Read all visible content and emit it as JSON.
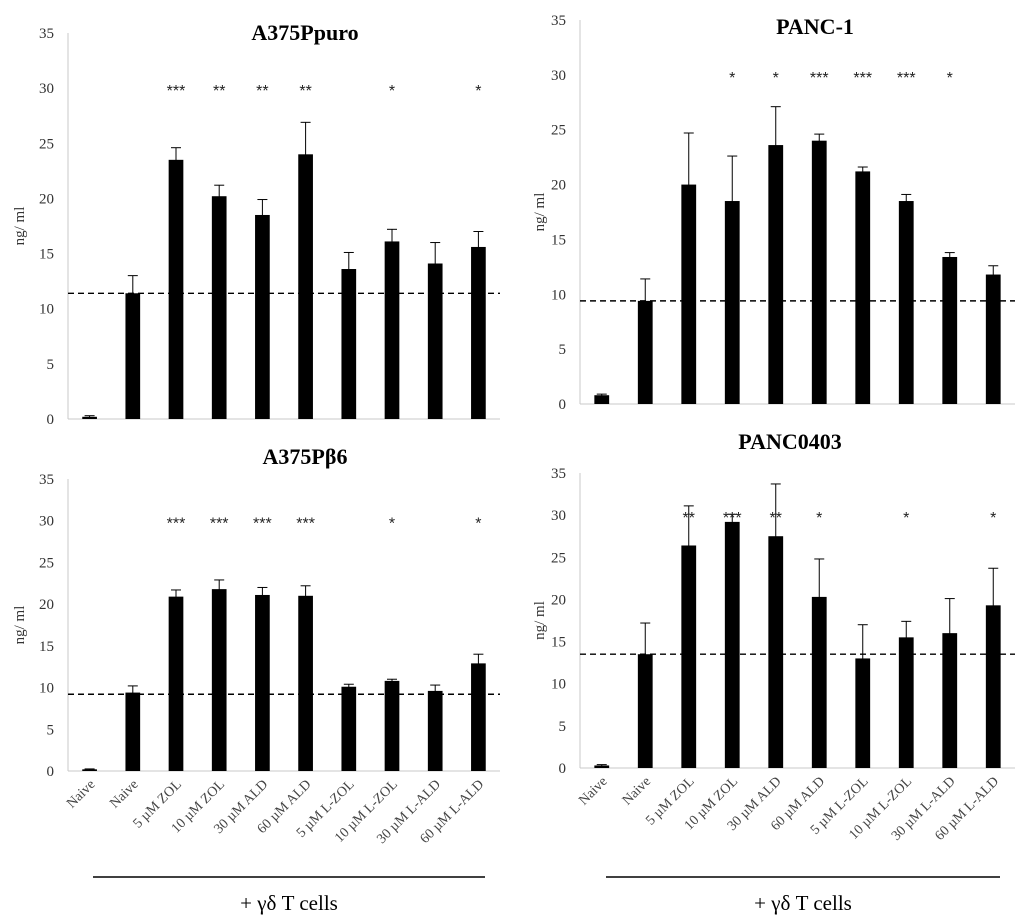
{
  "group_label": "+ γδ T cells",
  "watermark": "",
  "colors": {
    "bar": "#000000",
    "axis": "#c8c8c8",
    "baseline": "#000000",
    "text": "#333333"
  },
  "chart_data": [
    {
      "type": "bar",
      "title": "A375Ppuro",
      "ylabel": "ng/ ml",
      "ylim": [
        0,
        35
      ],
      "yticks": [
        0,
        5,
        10,
        15,
        20,
        25,
        30,
        35
      ],
      "categories": [
        "Naive",
        "Naive",
        "5 µM ZOL",
        "10 µM ZOL",
        "30 µM ALD",
        "60 µM ALD",
        "5 µM L-ZOL",
        "10 µM L-ZOL",
        "30 µM L-ALD",
        "60 µM L-ALD"
      ],
      "values": [
        0.2,
        11.4,
        23.5,
        20.2,
        18.5,
        24.0,
        13.6,
        16.1,
        14.1,
        15.6
      ],
      "errors": [
        0.1,
        1.6,
        1.1,
        1.0,
        1.4,
        2.9,
        1.5,
        1.1,
        1.9,
        1.4
      ],
      "significance": [
        "",
        "",
        "***",
        "**",
        "**",
        "**",
        "",
        "*",
        "",
        "*"
      ],
      "reference_line": 11.4,
      "show_category_labels": false
    },
    {
      "type": "bar",
      "title": "PANC-1",
      "ylabel": "ng/ ml",
      "ylim": [
        0,
        35
      ],
      "yticks": [
        0,
        5,
        10,
        15,
        20,
        25,
        30,
        35
      ],
      "categories": [
        "Naive",
        "Naive",
        "5 µM ZOL",
        "10 µM ZOL",
        "30 µM ALD",
        "60 µM ALD",
        "5 µM L-ZOL",
        "10 µM L-ZOL",
        "30 µM L-ALD",
        "60 µM L-ALD"
      ],
      "values": [
        0.8,
        9.4,
        20.0,
        18.5,
        23.6,
        24.0,
        21.2,
        18.5,
        13.4,
        11.8
      ],
      "errors": [
        0.1,
        2.0,
        4.7,
        4.1,
        3.5,
        0.6,
        0.4,
        0.6,
        0.4,
        0.8
      ],
      "significance": [
        "",
        "",
        "",
        "*",
        "*",
        "***",
        "***",
        "***",
        "*",
        ""
      ],
      "reference_line": 9.4,
      "show_category_labels": false
    },
    {
      "type": "bar",
      "title": "A375Pβ6",
      "ylabel": "ng/ ml",
      "ylim": [
        0,
        35
      ],
      "yticks": [
        0,
        5,
        10,
        15,
        20,
        25,
        30,
        35
      ],
      "categories": [
        "Naive",
        "Naive",
        "5 µM ZOL",
        "10 µM ZOL",
        "30 µM ALD",
        "60 µM ALD",
        "5 µM L-ZOL",
        "10 µM L-ZOL",
        "30 µM L-ALD",
        "60 µM L-ALD"
      ],
      "values": [
        0.2,
        9.4,
        20.9,
        21.8,
        21.1,
        21.0,
        10.1,
        10.8,
        9.6,
        12.9
      ],
      "errors": [
        0.05,
        0.8,
        0.8,
        1.1,
        0.9,
        1.2,
        0.3,
        0.2,
        0.7,
        1.1
      ],
      "significance": [
        "",
        "",
        "***",
        "***",
        "***",
        "***",
        "",
        "*",
        "",
        "*"
      ],
      "reference_line": 9.2,
      "show_category_labels": true
    },
    {
      "type": "bar",
      "title": "PANC0403",
      "ylabel": "ng/ ml",
      "ylim": [
        0,
        35
      ],
      "yticks": [
        0,
        5,
        10,
        15,
        20,
        25,
        30,
        35
      ],
      "categories": [
        "Naive",
        "Naive",
        "5 µM ZOL",
        "10 µM ZOL",
        "30 µM ALD",
        "60 µM ALD",
        "5 µM L-ZOL",
        "10 µM L-ZOL",
        "30 µM L-ALD",
        "60 µM L-ALD"
      ],
      "values": [
        0.3,
        13.5,
        26.4,
        29.2,
        27.5,
        20.3,
        13.0,
        15.5,
        16.0,
        19.3
      ],
      "errors": [
        0.1,
        3.7,
        4.7,
        0.9,
        6.2,
        4.5,
        4.0,
        1.9,
        4.1,
        4.4
      ],
      "significance": [
        "",
        "",
        "**",
        "***",
        "**",
        "*",
        "",
        "*",
        "",
        "*"
      ],
      "reference_line": 13.5,
      "show_category_labels": true
    }
  ]
}
